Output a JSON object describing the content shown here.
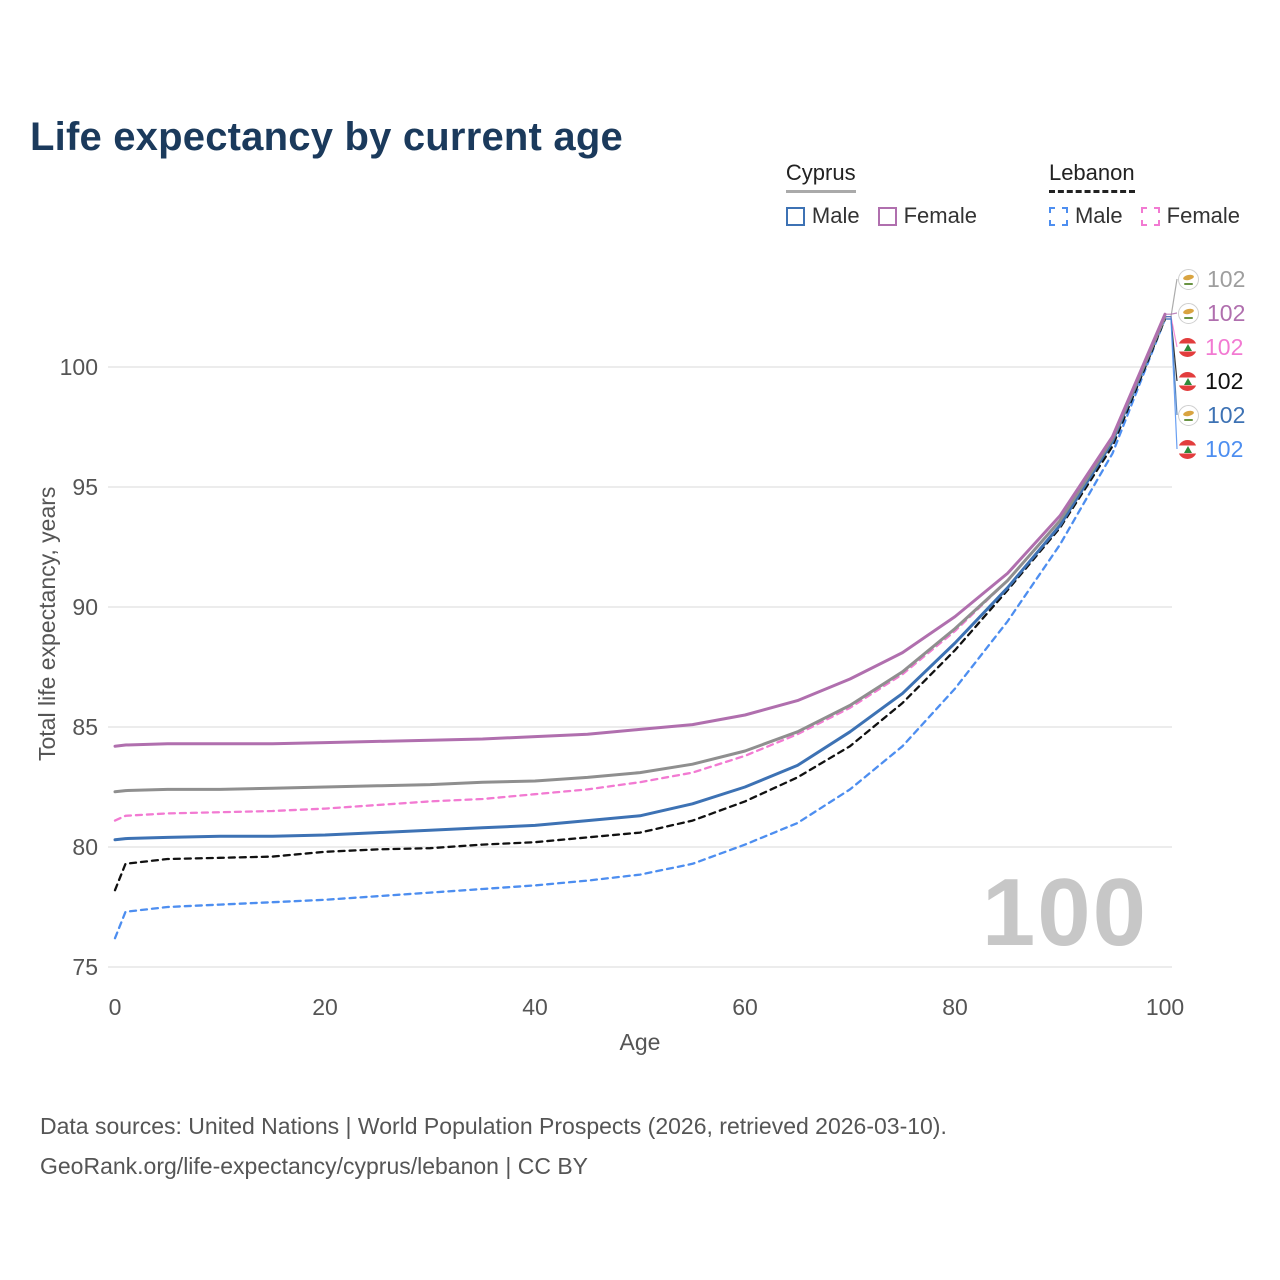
{
  "title": "Life expectancy by current age",
  "legend": {
    "groups": [
      {
        "label": "Cyprus",
        "underline": "solid",
        "underline_color": "#aaaaaa",
        "items": [
          {
            "label": "Male",
            "color": "#3d72b4",
            "dashed": false
          },
          {
            "label": "Female",
            "color": "#b06fae",
            "dashed": false
          }
        ]
      },
      {
        "label": "Lebanon",
        "underline": "dashed",
        "underline_color": "#222222",
        "items": [
          {
            "label": "Male",
            "color": "#4d8ef0",
            "dashed": true
          },
          {
            "label": "Female",
            "color": "#f27ad2",
            "dashed": true
          }
        ]
      }
    ]
  },
  "watermark": "100",
  "footer": {
    "line1": "Data sources: United Nations | World Population Prospects (2026, retrieved 2026-03-10).",
    "line2": "GeoRank.org/life-expectancy/cyprus/lebanon | CC BY"
  },
  "chart_data": {
    "type": "line",
    "title": "Life expectancy by current age",
    "xlabel": "Age",
    "ylabel": "Total life expectancy, years",
    "xlim": [
      0,
      100
    ],
    "ylim": [
      75,
      103
    ],
    "xticks": [
      0,
      20,
      40,
      60,
      80,
      100
    ],
    "yticks": [
      75,
      80,
      85,
      90,
      95,
      100
    ],
    "grid": "horizontal",
    "legend_position": "top-right",
    "x": [
      0,
      1,
      5,
      10,
      15,
      20,
      25,
      30,
      35,
      40,
      45,
      50,
      55,
      60,
      65,
      70,
      75,
      80,
      85,
      90,
      95,
      100
    ],
    "series": [
      {
        "name": "Lebanon Male",
        "country": "Lebanon",
        "sex": "Male",
        "color": "#4d8ef0",
        "dashed": true,
        "values": [
          76.2,
          77.3,
          77.5,
          77.6,
          77.7,
          77.8,
          77.95,
          78.1,
          78.25,
          78.4,
          78.6,
          78.85,
          79.3,
          80.1,
          81.0,
          82.4,
          84.2,
          86.6,
          89.4,
          92.6,
          96.4,
          102.0
        ]
      },
      {
        "name": "Lebanon",
        "country": "Lebanon",
        "sex": "Both",
        "color": "#111111",
        "dashed": true,
        "values": [
          78.2,
          79.3,
          79.5,
          79.55,
          79.6,
          79.8,
          79.9,
          79.95,
          80.1,
          80.2,
          80.4,
          80.6,
          81.1,
          81.9,
          82.9,
          84.2,
          86.0,
          88.2,
          90.7,
          93.3,
          96.7,
          102.0
        ]
      },
      {
        "name": "Lebanon Female",
        "country": "Lebanon",
        "sex": "Female",
        "color": "#f27ad2",
        "dashed": true,
        "values": [
          81.1,
          81.3,
          81.4,
          81.45,
          81.5,
          81.6,
          81.75,
          81.9,
          82.0,
          82.2,
          82.4,
          82.7,
          83.1,
          83.8,
          84.7,
          85.8,
          87.2,
          89.0,
          91.1,
          93.6,
          96.9,
          102.1
        ]
      },
      {
        "name": "Cyprus Male",
        "country": "Cyprus",
        "sex": "Male",
        "color": "#3d72b4",
        "dashed": false,
        "values": [
          80.3,
          80.35,
          80.4,
          80.45,
          80.45,
          80.5,
          80.6,
          80.7,
          80.8,
          80.9,
          81.1,
          81.3,
          81.8,
          82.5,
          83.4,
          84.8,
          86.4,
          88.5,
          90.8,
          93.4,
          96.9,
          102.1
        ]
      },
      {
        "name": "Cyprus",
        "country": "Cyprus",
        "sex": "Both",
        "color": "#8f8f8f",
        "dashed": false,
        "values": [
          82.3,
          82.35,
          82.4,
          82.4,
          82.45,
          82.5,
          82.55,
          82.6,
          82.7,
          82.75,
          82.9,
          83.1,
          83.45,
          84.0,
          84.8,
          85.9,
          87.3,
          89.1,
          91.1,
          93.6,
          97.0,
          102.1
        ]
      },
      {
        "name": "Cyprus Female",
        "country": "Cyprus",
        "sex": "Female",
        "color": "#b06fae",
        "dashed": false,
        "values": [
          84.2,
          84.25,
          84.3,
          84.3,
          84.3,
          84.35,
          84.4,
          84.45,
          84.5,
          84.6,
          84.7,
          84.9,
          85.1,
          85.5,
          86.1,
          87.0,
          88.1,
          89.6,
          91.4,
          93.8,
          97.1,
          102.2
        ]
      }
    ],
    "end_labels": [
      {
        "text": "102",
        "color": "#9e9e9e",
        "flag": "cyprus",
        "series": "Cyprus"
      },
      {
        "text": "102",
        "color": "#b06fae",
        "flag": "cyprus",
        "series": "Cyprus Female"
      },
      {
        "text": "102",
        "color": "#f27ad2",
        "flag": "lebanon",
        "series": "Lebanon Female"
      },
      {
        "text": "102",
        "color": "#111111",
        "flag": "lebanon",
        "series": "Lebanon"
      },
      {
        "text": "102",
        "color": "#3d72b4",
        "flag": "cyprus",
        "series": "Cyprus Male"
      },
      {
        "text": "102",
        "color": "#4d8ef0",
        "flag": "lebanon",
        "series": "Lebanon Male"
      }
    ]
  }
}
